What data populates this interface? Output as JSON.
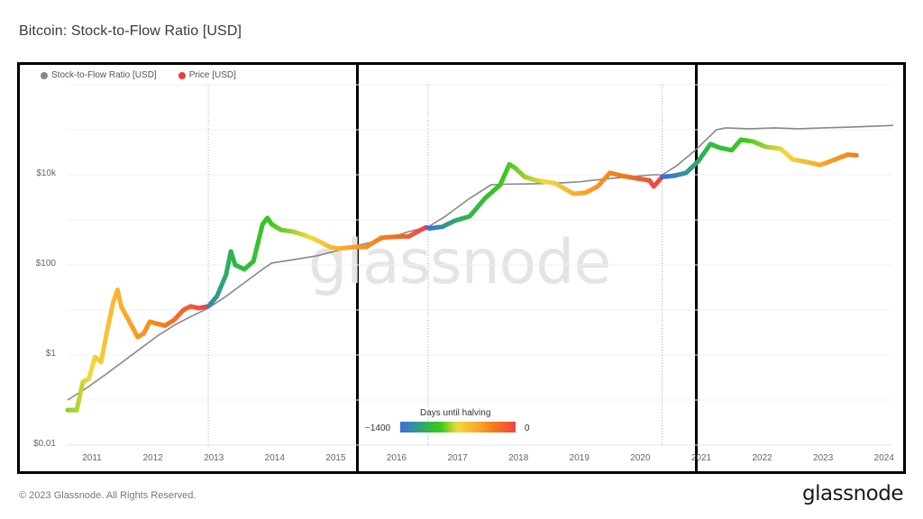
{
  "header": {
    "title": "Bitcoin: Stock-to-Flow Ratio [USD]"
  },
  "legend": {
    "items": [
      {
        "label": "Stock-to-Flow Ratio [USD]",
        "color": "#888888"
      },
      {
        "label": "Price [USD]",
        "color": "#ee3b3b"
      }
    ]
  },
  "colorbar": {
    "title": "Days until halving",
    "min_label": "~1400",
    "max_label": "0",
    "colors": [
      "#3b6fe0",
      "#2bb84a",
      "#3cc81e",
      "#f4d73c",
      "#f7a52a",
      "#f17a1c",
      "#ee4444"
    ]
  },
  "watermark": "glassnode",
  "footer": {
    "copyright": "© 2023 Glassnode. All Rights Reserved.",
    "brand": "glassnode"
  },
  "chart_data": {
    "type": "line",
    "title": "Bitcoin: Stock-to-Flow Ratio [USD]",
    "xlabel": "",
    "ylabel": "",
    "yscale": "log",
    "ylim": [
      0.01,
      1000000
    ],
    "xlim": [
      2010.6,
      2024.15
    ],
    "y_ticks": [
      {
        "value": 10000,
        "label": "$10k"
      },
      {
        "value": 100,
        "label": "$100"
      },
      {
        "value": 1,
        "label": "$1"
      },
      {
        "value": 0.01,
        "label": "$0.01"
      }
    ],
    "x_ticks": [
      "2011",
      "2012",
      "2013",
      "2014",
      "2015",
      "2016",
      "2017",
      "2018",
      "2019",
      "2020",
      "2021",
      "2022",
      "2023",
      "2024"
    ],
    "halving_markers": [
      2012.91,
      2016.52,
      2020.36
    ],
    "grid": true,
    "legend_position": "top-left",
    "series": [
      {
        "name": "Stock-to-Flow Ratio [USD]",
        "color": "#888888",
        "x": [
          2010.6,
          2010.9,
          2011.2,
          2011.5,
          2011.8,
          2012.1,
          2012.4,
          2012.7,
          2012.91,
          2013.2,
          2013.5,
          2013.8,
          2013.95,
          2014.3,
          2014.7,
          2015.1,
          2015.5,
          2015.9,
          2016.2,
          2016.52,
          2016.8,
          2017.2,
          2017.55,
          2017.8,
          2018.2,
          2018.6,
          2019.0,
          2019.4,
          2019.8,
          2020.2,
          2020.36,
          2020.6,
          2020.9,
          2021.25,
          2021.4,
          2021.8,
          2022.2,
          2022.6,
          2023.0,
          2023.5,
          2024.15
        ],
        "values": [
          0.1,
          0.18,
          0.35,
          0.7,
          1.4,
          2.8,
          5.0,
          8.0,
          11,
          20,
          40,
          80,
          110,
          130,
          160,
          220,
          300,
          400,
          550,
          700,
          1200,
          3000,
          6000,
          6200,
          6300,
          6500,
          7000,
          8000,
          9000,
          10000,
          10000,
          16000,
          35000,
          100000,
          110000,
          105000,
          110000,
          105000,
          110000,
          115000,
          125000
        ]
      },
      {
        "name": "Price [USD]",
        "color_mode": "days-until-halving",
        "x": [
          2010.6,
          2010.75,
          2010.85,
          2010.95,
          2011.05,
          2011.15,
          2011.25,
          2011.35,
          2011.42,
          2011.48,
          2011.55,
          2011.65,
          2011.75,
          2011.85,
          2011.95,
          2012.05,
          2012.2,
          2012.35,
          2012.5,
          2012.62,
          2012.75,
          2012.91,
          2013.05,
          2013.2,
          2013.28,
          2013.35,
          2013.5,
          2013.65,
          2013.8,
          2013.88,
          2013.95,
          2014.1,
          2014.3,
          2014.5,
          2014.7,
          2014.9,
          2015.05,
          2015.3,
          2015.5,
          2015.75,
          2015.95,
          2016.2,
          2016.4,
          2016.48,
          2016.55,
          2016.75,
          2016.95,
          2017.2,
          2017.45,
          2017.7,
          2017.85,
          2017.95,
          2018.1,
          2018.3,
          2018.6,
          2018.9,
          2019.1,
          2019.3,
          2019.5,
          2019.7,
          2019.9,
          2020.15,
          2020.22,
          2020.36,
          2020.55,
          2020.75,
          2020.95,
          2021.15,
          2021.3,
          2021.5,
          2021.65,
          2021.85,
          2022.05,
          2022.3,
          2022.5,
          2022.75,
          2022.95,
          2023.2,
          2023.4,
          2023.55
        ],
        "values": [
          0.06,
          0.06,
          0.25,
          0.3,
          0.9,
          0.7,
          3.5,
          15,
          28,
          12,
          8,
          4.5,
          2.5,
          3,
          5.5,
          5,
          4.5,
          6,
          10,
          12,
          11,
          12,
          20,
          60,
          200,
          100,
          80,
          120,
          800,
          1100,
          800,
          600,
          550,
          450,
          350,
          250,
          230,
          250,
          250,
          400,
          420,
          430,
          600,
          680,
          650,
          700,
          950,
          1200,
          3000,
          6000,
          17000,
          14000,
          9000,
          7500,
          6500,
          3800,
          4000,
          5500,
          11000,
          9500,
          8500,
          7500,
          5500,
          9000,
          9500,
          11000,
          20000,
          48000,
          40000,
          35000,
          60000,
          55000,
          42000,
          38000,
          22000,
          19000,
          16500,
          22000,
          28000,
          27000
        ],
        "colors_by_cycle": "blue -> green -> yellow -> orange -> red, resetting at each halving"
      }
    ]
  }
}
